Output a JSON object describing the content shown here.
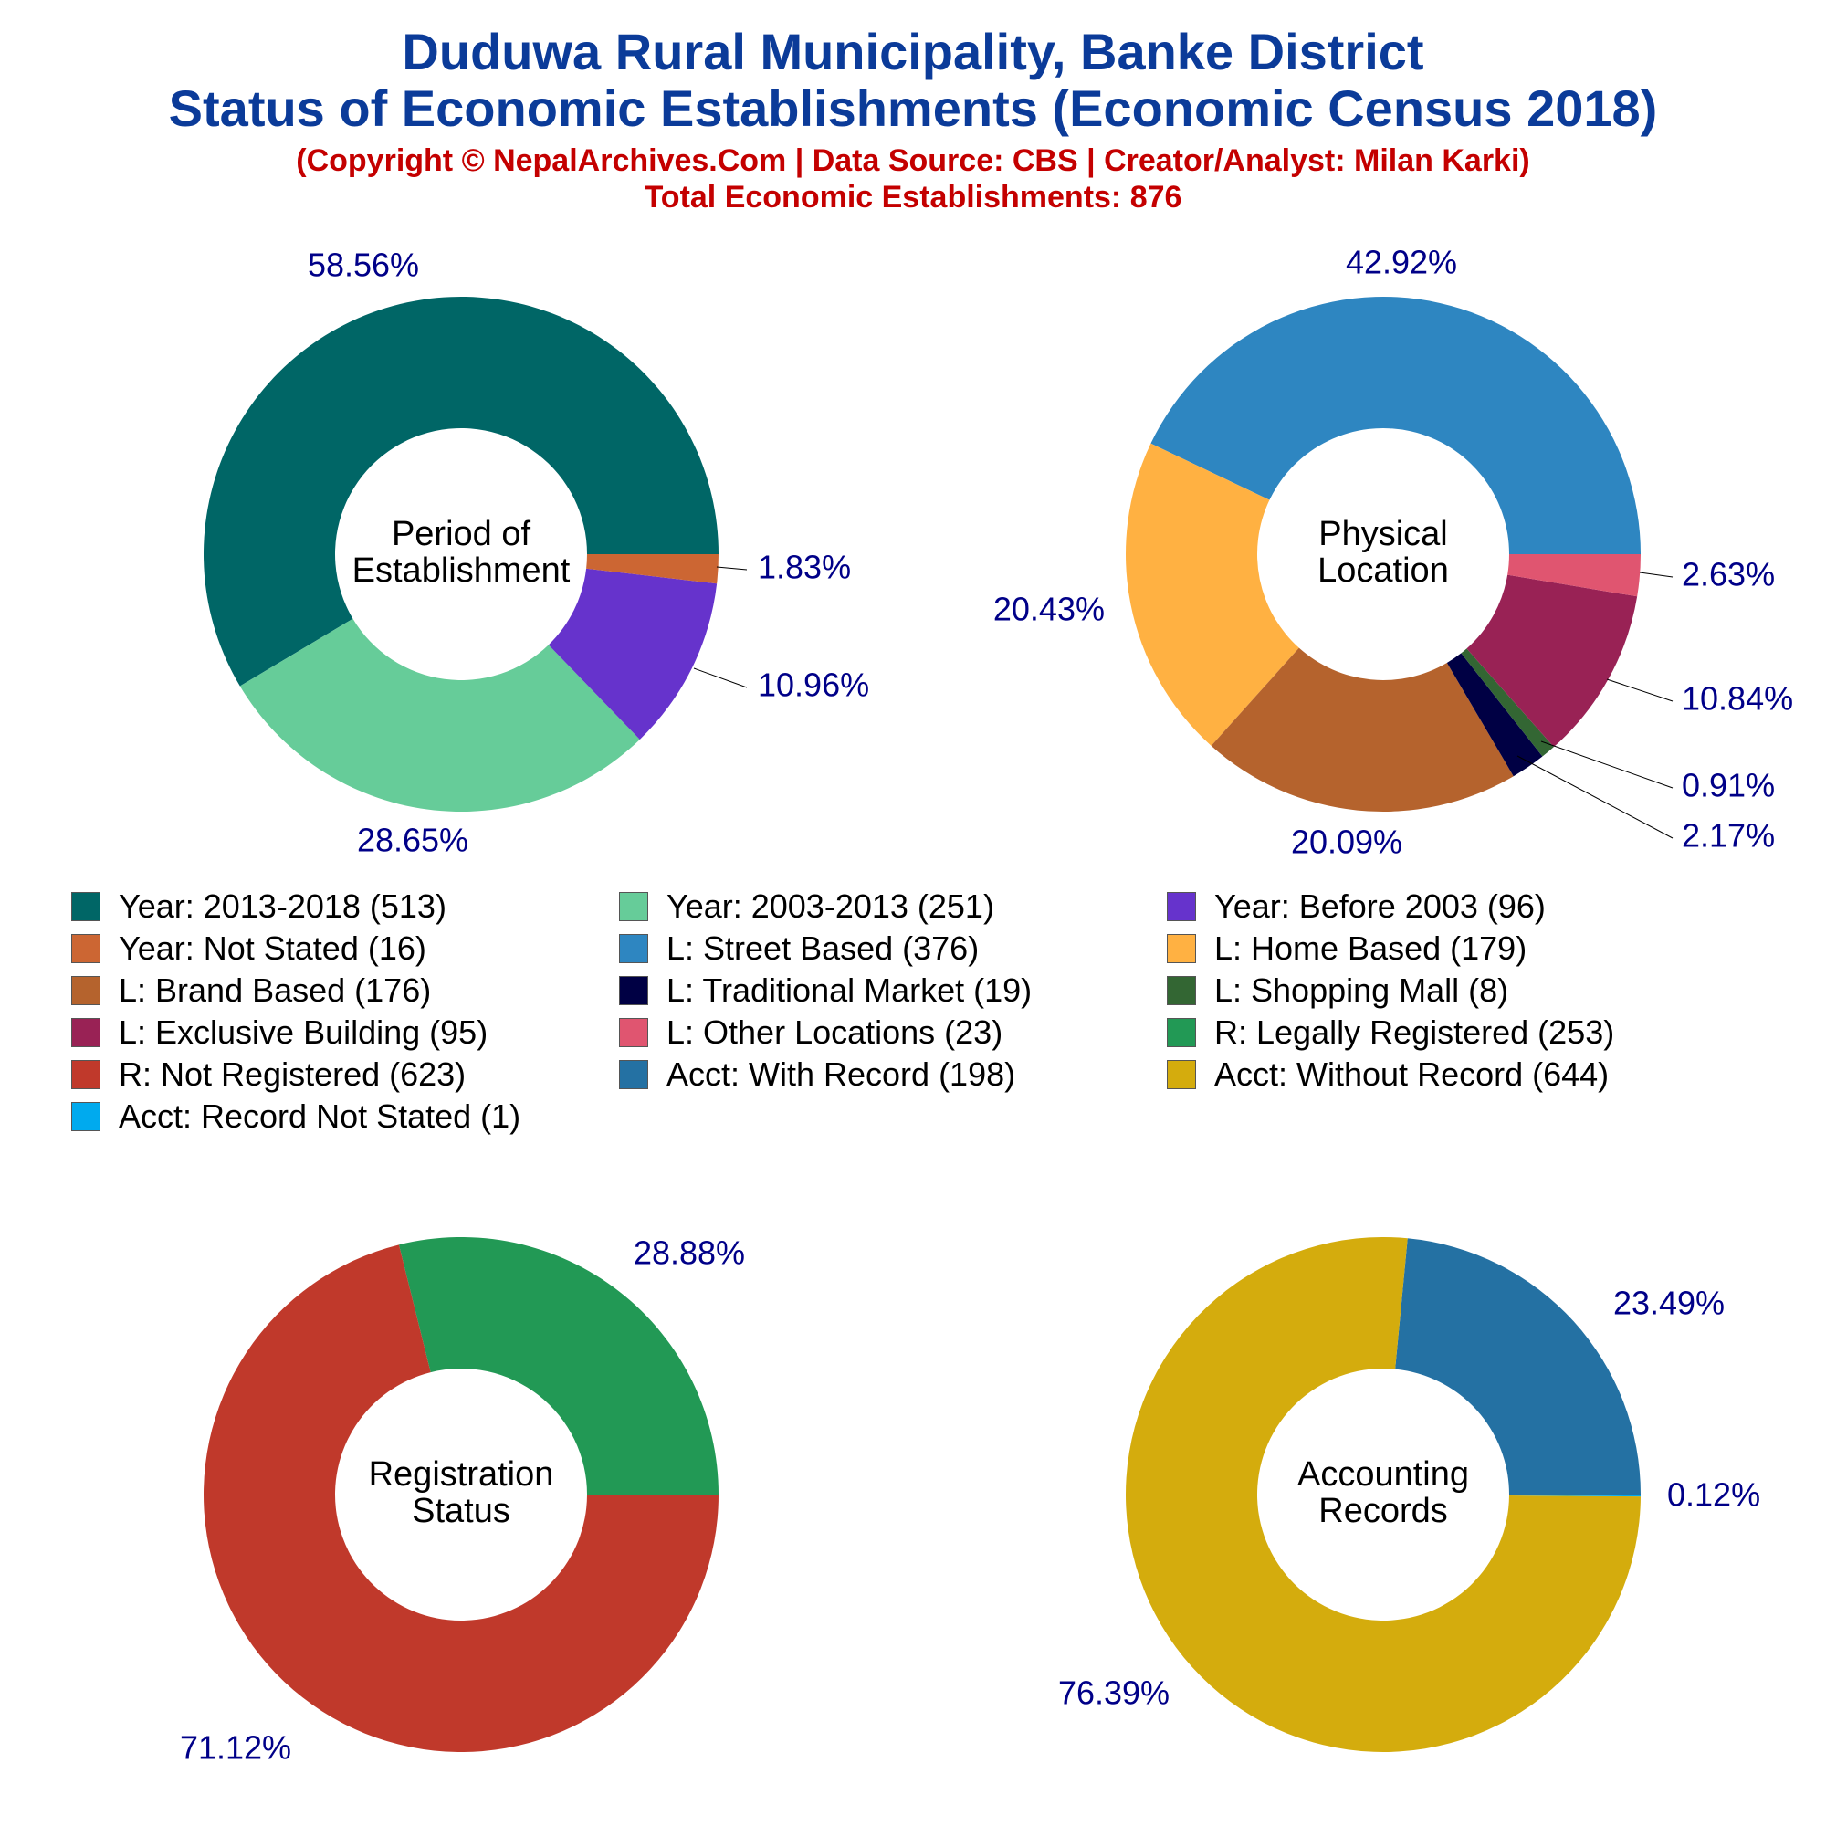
{
  "header": {
    "title_line1": "Duduwa Rural Municipality, Banke District",
    "title_line2": "Status of Economic Establishments (Economic Census 2018)",
    "copyright": "(Copyright © NepalArchives.Com | Data Source: CBS | Creator/Analyst: Milan Karki)",
    "total": "Total Economic Establishments: 876"
  },
  "chart_data": [
    {
      "type": "pie",
      "center_label": [
        "Period of",
        "Establishment"
      ],
      "slices": [
        {
          "legend": "Year: 2013-2018 (513)",
          "value": 513,
          "pct_label": "58.56%",
          "color": "#006666"
        },
        {
          "legend": "Year: 2003-2013 (251)",
          "value": 251,
          "pct_label": "28.65%",
          "color": "#66cc99"
        },
        {
          "legend": "Year: Before 2003 (96)",
          "value": 96,
          "pct_label": "10.96%",
          "color": "#6633cc"
        },
        {
          "legend": "Year: Not Stated (16)",
          "value": 16,
          "pct_label": "1.83%",
          "color": "#cc6633"
        }
      ]
    },
    {
      "type": "pie",
      "center_label": [
        "Physical",
        "Location"
      ],
      "slices": [
        {
          "legend": "L: Street Based (376)",
          "value": 376,
          "pct_label": "42.92%",
          "color": "#2e86c1"
        },
        {
          "legend": "L: Home Based (179)",
          "value": 179,
          "pct_label": "20.43%",
          "color": "#ffb142"
        },
        {
          "legend": "L: Brand Based (176)",
          "value": 176,
          "pct_label": "20.09%",
          "color": "#b5632d"
        },
        {
          "legend": "L: Traditional Market (19)",
          "value": 19,
          "pct_label": "2.17%",
          "color": "#000044"
        },
        {
          "legend": "L: Shopping Mall (8)",
          "value": 8,
          "pct_label": "0.91%",
          "color": "#336633"
        },
        {
          "legend": "L: Exclusive Building (95)",
          "value": 95,
          "pct_label": "10.84%",
          "color": "#992255"
        },
        {
          "legend": "L: Other Locations (23)",
          "value": 23,
          "pct_label": "2.63%",
          "color": "#e05570"
        }
      ]
    },
    {
      "type": "pie",
      "center_label": [
        "Registration",
        "Status"
      ],
      "slices": [
        {
          "legend": "R: Legally Registered (253)",
          "value": 253,
          "pct_label": "28.88%",
          "color": "#229955"
        },
        {
          "legend": "R: Not Registered (623)",
          "value": 623,
          "pct_label": "71.12%",
          "color": "#c0392b"
        }
      ]
    },
    {
      "type": "pie",
      "center_label": [
        "Accounting",
        "Records"
      ],
      "slices": [
        {
          "legend": "Acct: With Record (198)",
          "value": 198,
          "pct_label": "23.49%",
          "color": "#2471a3"
        },
        {
          "legend": "Acct: Without Record (644)",
          "value": 644,
          "pct_label": "76.39%",
          "color": "#d4ac0d"
        },
        {
          "legend": "Acct: Record Not Stated (1)",
          "value": 1,
          "pct_label": "0.12%",
          "color": "#00aaee"
        }
      ]
    }
  ],
  "legend": [
    {
      "label": "Year: 2013-2018 (513)",
      "color": "#006666"
    },
    {
      "label": "Year: 2003-2013 (251)",
      "color": "#66cc99"
    },
    {
      "label": "Year: Before 2003 (96)",
      "color": "#6633cc"
    },
    {
      "label": "Year: Not Stated (16)",
      "color": "#cc6633"
    },
    {
      "label": "L: Street Based (376)",
      "color": "#2e86c1"
    },
    {
      "label": "L: Home Based (179)",
      "color": "#ffb142"
    },
    {
      "label": "L: Brand Based (176)",
      "color": "#b5632d"
    },
    {
      "label": "L: Traditional Market (19)",
      "color": "#000044"
    },
    {
      "label": "L: Shopping Mall (8)",
      "color": "#336633"
    },
    {
      "label": "L: Exclusive Building (95)",
      "color": "#992255"
    },
    {
      "label": "L: Other Locations (23)",
      "color": "#e05570"
    },
    {
      "label": "R: Legally Registered (253)",
      "color": "#229955"
    },
    {
      "label": "R: Not Registered (623)",
      "color": "#c0392b"
    },
    {
      "label": "Acct: With Record (198)",
      "color": "#2471a3"
    },
    {
      "label": "Acct: Without Record (644)",
      "color": "#d4ac0d"
    },
    {
      "label": "Acct: Record Not Stated (1)",
      "color": "#00aaee"
    }
  ],
  "colors": {
    "pct_label": "#000088",
    "center_label": "#000000"
  }
}
